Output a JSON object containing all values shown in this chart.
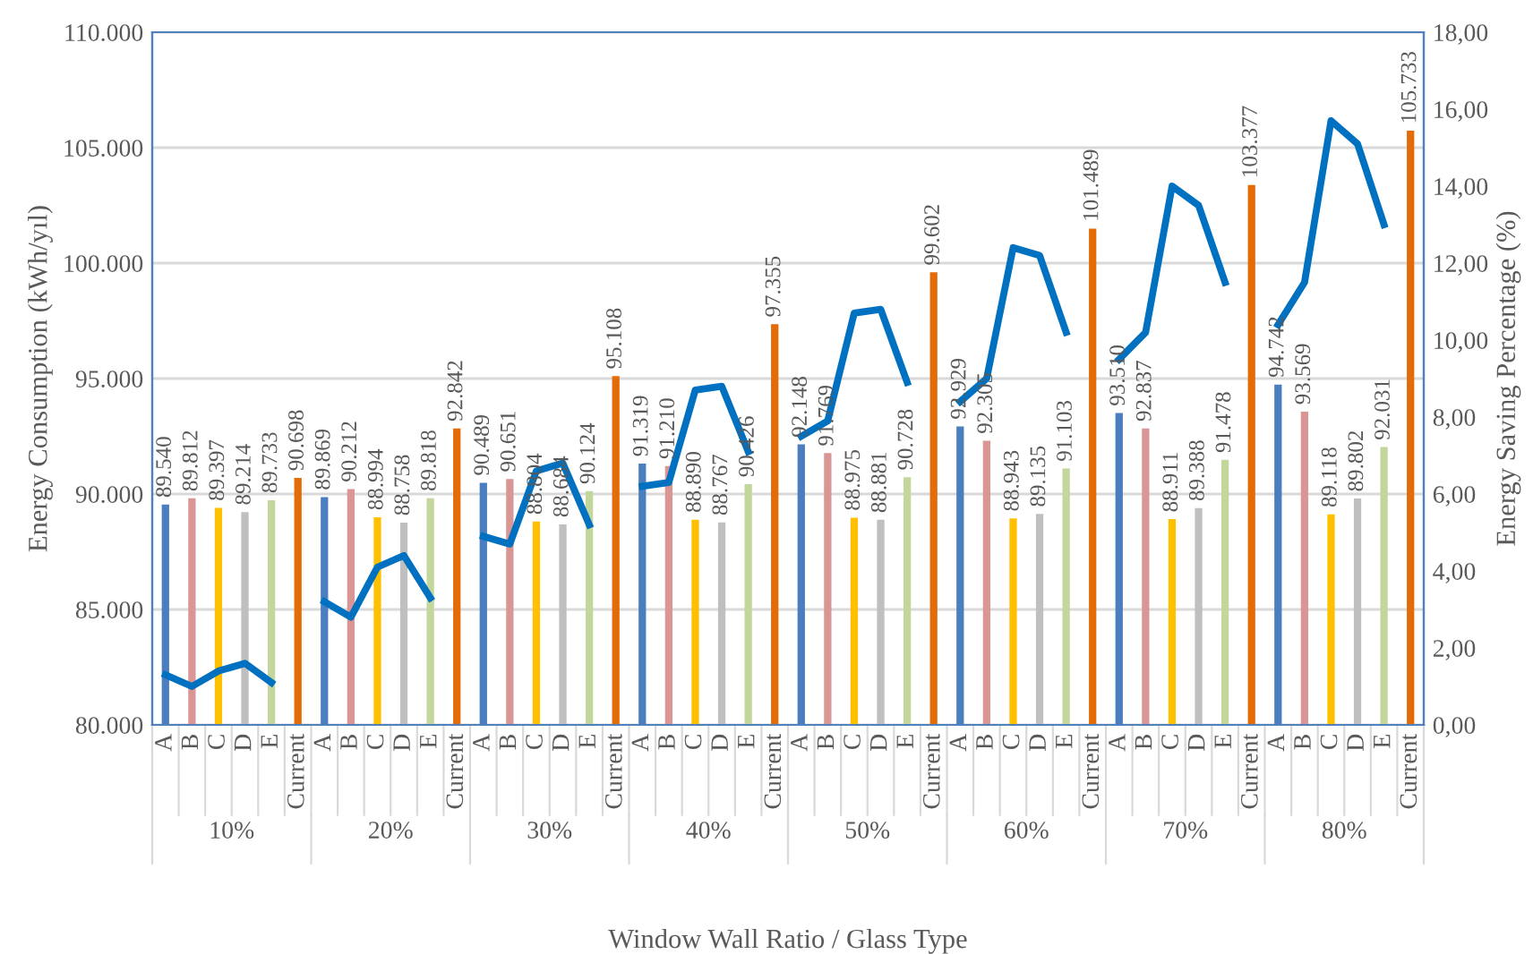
{
  "chart_data": {
    "type": "bar",
    "xlabel": "Window Wall Ratio / Glass Type",
    "ylabel": "Energy Consumption (kWh/yıl)",
    "y2label": "Energy Saving Percentage (%)",
    "categories": [
      "A",
      "B",
      "C",
      "D",
      "E",
      "Current",
      "A",
      "B",
      "C",
      "D",
      "E",
      "Current",
      "A",
      "B",
      "C",
      "D",
      "E",
      "Current",
      "A",
      "B",
      "C",
      "D",
      "E",
      "Current",
      "A",
      "B",
      "C",
      "D",
      "E",
      "Current",
      "A",
      "B",
      "C",
      "D",
      "E",
      "Current",
      "A",
      "B",
      "C",
      "D",
      "E",
      "Current",
      "A",
      "B",
      "C",
      "D",
      "E",
      "Current"
    ],
    "annotations": [
      "10%",
      "20%",
      "30%",
      "40%",
      "50%",
      "60%",
      "70%",
      "80%"
    ],
    "series": [
      {
        "values": [
          89540,
          89812,
          89397,
          89214,
          89733,
          90698,
          89869,
          90212,
          88994,
          88758,
          89818,
          92842,
          90489,
          90651,
          88804,
          88684,
          90124,
          95108,
          91319,
          91210,
          88890,
          88767,
          90426,
          97355,
          92148,
          91769,
          88975,
          88881,
          90728,
          99602,
          92929,
          92305,
          88943,
          89135,
          91103,
          101489,
          93510,
          92837,
          88911,
          89388,
          91478,
          103377,
          94742,
          93569,
          89118,
          89802,
          92031,
          105733
        ],
        "value_labels": [
          "89.540",
          "89.812",
          "89.397",
          "89.214",
          "89.733",
          "90.698",
          "89.869",
          "90.212",
          "88.994",
          "88.758",
          "89.818",
          "92.842",
          "90.489",
          "90.651",
          "88.804",
          "88.684",
          "90.124",
          "95.108",
          "91.319",
          "91.210",
          "88.890",
          "88.767",
          "90.426",
          "97.355",
          "92.148",
          "91.769",
          "88.975",
          "88.881",
          "90.728",
          "99.602",
          "92.929",
          "92.305",
          "88.943",
          "89.135",
          "91.103",
          "101.489",
          "93.510",
          "92.837",
          "88.911",
          "89.388",
          "91.478",
          "103.377",
          "94.742",
          "93.569",
          "89.118",
          "89.802",
          "92.031",
          "105.733"
        ],
        "colors": [
          "#4a7ebf",
          "#d99694",
          "#ffc000",
          "#bfbfbf",
          "#c3d69b",
          "#e36c09",
          "#4a7ebf",
          "#d99694",
          "#ffc000",
          "#bfbfbf",
          "#c3d69b",
          "#e36c09",
          "#4a7ebf",
          "#d99694",
          "#ffc000",
          "#bfbfbf",
          "#c3d69b",
          "#e36c09",
          "#4a7ebf",
          "#d99694",
          "#ffc000",
          "#bfbfbf",
          "#c3d69b",
          "#e36c09",
          "#4a7ebf",
          "#d99694",
          "#ffc000",
          "#bfbfbf",
          "#c3d69b",
          "#e36c09",
          "#4a7ebf",
          "#d99694",
          "#ffc000",
          "#bfbfbf",
          "#c3d69b",
          "#e36c09",
          "#4a7ebf",
          "#d99694",
          "#ffc000",
          "#bfbfbf",
          "#c3d69b",
          "#e36c09",
          "#4a7ebf",
          "#d99694",
          "#ffc000",
          "#bfbfbf",
          "#c3d69b",
          "#e36c09"
        ]
      },
      {
        "type": "line",
        "axis": "y2",
        "color": "#0070c0",
        "values": [
          1.3,
          1.0,
          1.4,
          1.6,
          1.1,
          null,
          3.2,
          2.8,
          4.1,
          4.4,
          3.3,
          null,
          4.9,
          4.7,
          6.6,
          6.8,
          5.2,
          null,
          6.2,
          6.3,
          8.7,
          8.8,
          7.1,
          null,
          7.5,
          7.9,
          10.7,
          10.8,
          8.9,
          null,
          8.4,
          9.0,
          12.4,
          12.2,
          10.2,
          null,
          9.5,
          10.2,
          14.0,
          13.5,
          11.5,
          null,
          10.4,
          11.5,
          15.7,
          15.1,
          13.0,
          null
        ]
      }
    ],
    "ylim": [
      80000,
      110000
    ],
    "yticks": [
      {
        "value": 80000,
        "label": "80.000"
      },
      {
        "value": 85000,
        "label": "85.000"
      },
      {
        "value": 90000,
        "label": "90.000"
      },
      {
        "value": 95000,
        "label": "95.000"
      },
      {
        "value": 100000,
        "label": "100.000"
      },
      {
        "value": 105000,
        "label": "105.000"
      },
      {
        "value": 110000,
        "label": "110.000"
      }
    ],
    "y2lim": [
      0,
      18
    ],
    "y2ticks": [
      {
        "value": 0,
        "label": "0,00"
      },
      {
        "value": 2,
        "label": "2,00"
      },
      {
        "value": 4,
        "label": "4,00"
      },
      {
        "value": 6,
        "label": "6,00"
      },
      {
        "value": 8,
        "label": "8,00"
      },
      {
        "value": 10,
        "label": "10,00"
      },
      {
        "value": 12,
        "label": "12,00"
      },
      {
        "value": 14,
        "label": "14,00"
      },
      {
        "value": 16,
        "label": "16,00"
      },
      {
        "value": 18,
        "label": "18,00"
      }
    ],
    "grid": "y",
    "line_style": "solid",
    "marker": "none"
  }
}
